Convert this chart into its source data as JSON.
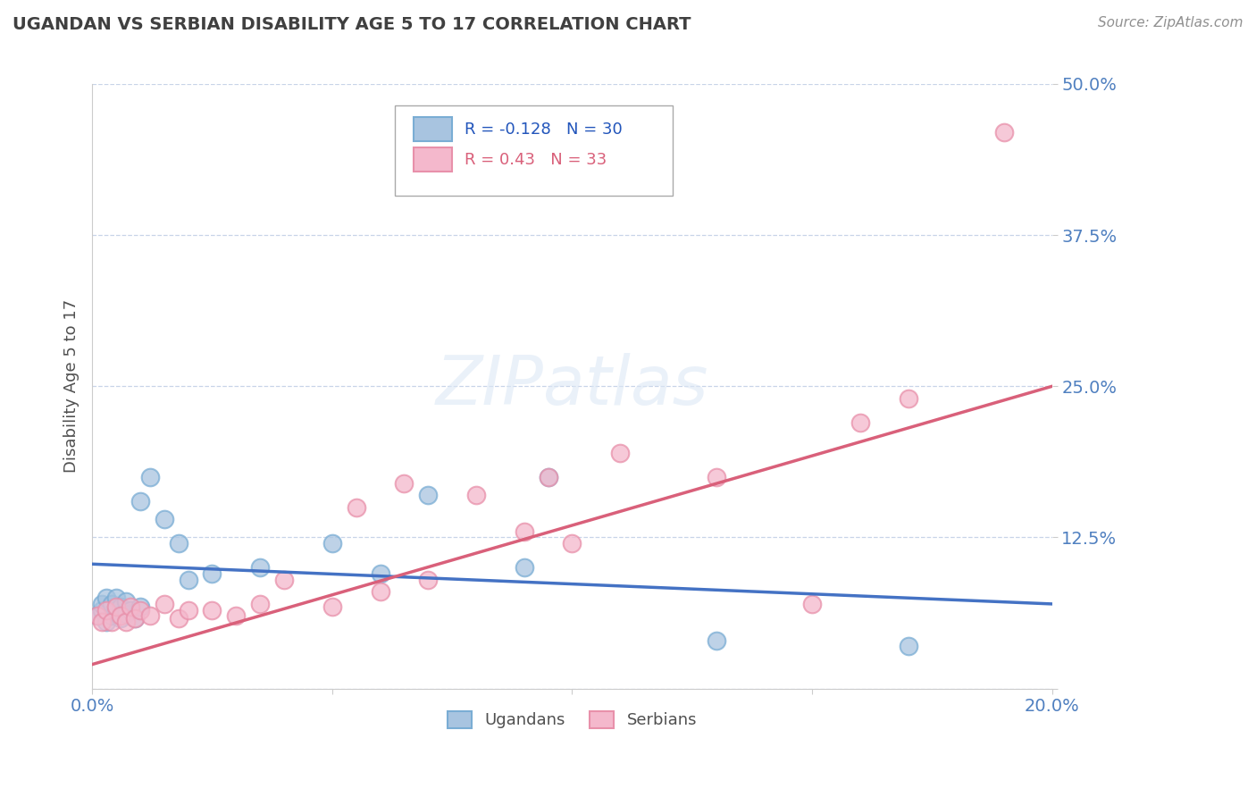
{
  "title": "UGANDAN VS SERBIAN DISABILITY AGE 5 TO 17 CORRELATION CHART",
  "source_text": "Source: ZipAtlas.com",
  "ylabel": "Disability Age 5 to 17",
  "xlim": [
    0.0,
    0.2
  ],
  "ylim": [
    0.0,
    0.5
  ],
  "yticks": [
    0.0,
    0.125,
    0.25,
    0.375,
    0.5
  ],
  "ytick_labels": [
    "",
    "12.5%",
    "25.0%",
    "37.5%",
    "50.0%"
  ],
  "xticks": [
    0.0,
    0.05,
    0.1,
    0.15,
    0.2
  ],
  "xtick_labels": [
    "0.0%",
    "",
    "",
    "",
    "20.0%"
  ],
  "ugandan_R": -0.128,
  "ugandan_N": 30,
  "serbian_R": 0.43,
  "serbian_N": 33,
  "ugandan_color": "#a8c4e0",
  "ugandan_edge_color": "#7aadd4",
  "serbian_color": "#f4b8cc",
  "serbian_edge_color": "#e890aa",
  "ugandan_line_color": "#4472c4",
  "serbian_line_color": "#d9607a",
  "grid_color": "#c8d4e8",
  "background_color": "#ffffff",
  "title_color": "#404040",
  "axis_label_color": "#5080c0",
  "ugandan_x": [
    0.001,
    0.002,
    0.002,
    0.003,
    0.003,
    0.004,
    0.004,
    0.005,
    0.005,
    0.006,
    0.006,
    0.007,
    0.007,
    0.008,
    0.009,
    0.01,
    0.01,
    0.012,
    0.015,
    0.018,
    0.02,
    0.025,
    0.035,
    0.05,
    0.06,
    0.07,
    0.09,
    0.095,
    0.13,
    0.17
  ],
  "ugandan_y": [
    0.06,
    0.065,
    0.07,
    0.055,
    0.075,
    0.06,
    0.07,
    0.065,
    0.075,
    0.058,
    0.068,
    0.062,
    0.072,
    0.065,
    0.058,
    0.068,
    0.155,
    0.175,
    0.14,
    0.12,
    0.09,
    0.095,
    0.1,
    0.12,
    0.095,
    0.16,
    0.1,
    0.175,
    0.04,
    0.035
  ],
  "serbian_x": [
    0.001,
    0.002,
    0.003,
    0.004,
    0.005,
    0.006,
    0.007,
    0.008,
    0.009,
    0.01,
    0.012,
    0.015,
    0.018,
    0.02,
    0.025,
    0.03,
    0.035,
    0.04,
    0.05,
    0.055,
    0.06,
    0.065,
    0.07,
    0.08,
    0.09,
    0.095,
    0.1,
    0.11,
    0.13,
    0.15,
    0.16,
    0.17,
    0.19
  ],
  "serbian_y": [
    0.06,
    0.055,
    0.065,
    0.055,
    0.068,
    0.06,
    0.055,
    0.068,
    0.058,
    0.065,
    0.06,
    0.07,
    0.058,
    0.065,
    0.065,
    0.06,
    0.07,
    0.09,
    0.068,
    0.15,
    0.08,
    0.17,
    0.09,
    0.16,
    0.13,
    0.175,
    0.12,
    0.195,
    0.175,
    0.07,
    0.22,
    0.24,
    0.46
  ],
  "ugandan_line_x": [
    0.0,
    0.2
  ],
  "ugandan_line_y": [
    0.103,
    0.07
  ],
  "serbian_line_x": [
    0.0,
    0.2
  ],
  "serbian_line_y": [
    0.02,
    0.25
  ]
}
